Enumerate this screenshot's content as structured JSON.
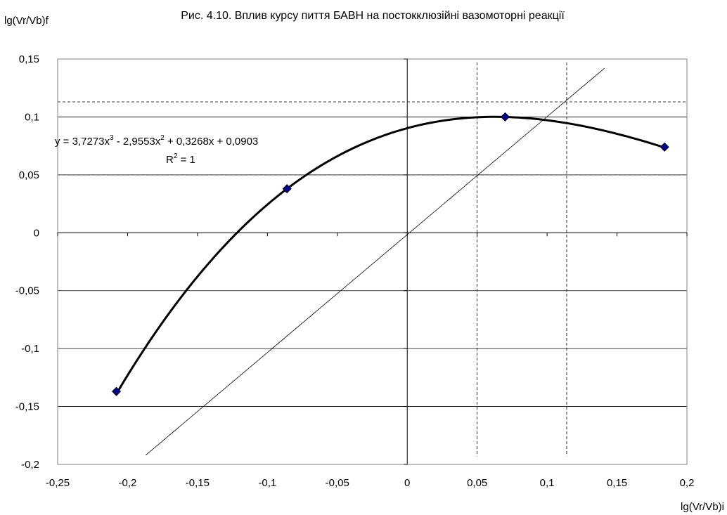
{
  "chart_data": {
    "type": "scatter",
    "title": "Рис. 4.10. Вплив курсу пиття БАВН на постокклюзійні вазомоторні реакції",
    "xlabel": "lg(Vr/Vb)i",
    "ylabel": "lg(Vr/Vb)f",
    "xlim": [
      -0.25,
      0.2
    ],
    "ylim": [
      -0.2,
      0.15
    ],
    "x_ticks": [
      -0.25,
      -0.2,
      -0.15,
      -0.1,
      -0.05,
      0,
      0.05,
      0.1,
      0.15,
      0.2
    ],
    "y_ticks": [
      -0.2,
      -0.15,
      -0.1,
      -0.05,
      0,
      0.05,
      0.1,
      0.15
    ],
    "x_tick_labels": [
      "-0,25",
      "-0,2",
      "-0,15",
      "-0,1",
      "-0,05",
      "0",
      "0,05",
      "0,1",
      "0,15",
      "0,2"
    ],
    "y_tick_labels": [
      "-0,2",
      "-0,15",
      "-0,1",
      "-0,05",
      "0",
      "0,05",
      "0,1",
      "0,15"
    ],
    "grid": "horizontal",
    "points": [
      {
        "x": -0.208,
        "y": -0.137
      },
      {
        "x": -0.086,
        "y": 0.038
      },
      {
        "x": 0.07,
        "y": 0.1
      },
      {
        "x": 0.184,
        "y": 0.074
      }
    ],
    "marker_color": "#000080",
    "trendline": {
      "type": "polynomial",
      "coefficients": [
        3.7273,
        -2.9553,
        0.3268,
        0.0903
      ],
      "x_range": [
        -0.208,
        0.184
      ],
      "equation_text": "y = 3,7273x",
      "equation_parts": [
        "3",
        " - 2,9553x",
        "2",
        " + 0,3268x + 0,0903"
      ],
      "r2_prefix": "R",
      "r2_sup": "2",
      "r2_suffix": " = 1"
    },
    "reference_line": {
      "x1": -0.187,
      "y1": -0.192,
      "x2": 0.141,
      "y2": 0.142
    },
    "dashed_horizontal": [
      0.113,
      0.05
    ],
    "dashed_vertical": [
      0.05,
      0.114
    ],
    "dashed_vertical_range": [
      -0.193,
      0.147
    ]
  }
}
